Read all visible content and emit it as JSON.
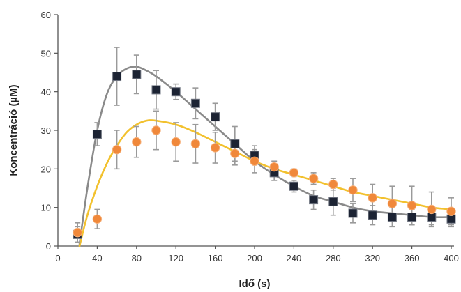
{
  "chart_data": {
    "type": "scatter",
    "title": "",
    "xlabel": "Idő (s)",
    "ylabel": "Koncentráció (µM)",
    "xlim": [
      0,
      400
    ],
    "ylim": [
      0,
      60
    ],
    "xticks": [
      0,
      40,
      80,
      120,
      160,
      200,
      240,
      280,
      320,
      360,
      400
    ],
    "yticks": [
      0,
      10,
      20,
      30,
      40,
      50,
      60
    ],
    "grid": false,
    "legend": "none",
    "series": [
      {
        "marker": "square",
        "color": "#1c2333",
        "line_color": "#8a8a8a",
        "points": [
          {
            "x": 20,
            "y": 3,
            "err": 2
          },
          {
            "x": 40,
            "y": 29,
            "err": 3
          },
          {
            "x": 60,
            "y": 44,
            "err": 7.5
          },
          {
            "x": 80,
            "y": 44.5,
            "err": 5
          },
          {
            "x": 100,
            "y": 40.5,
            "err": 5
          },
          {
            "x": 120,
            "y": 40,
            "err": 2
          },
          {
            "x": 140,
            "y": 37,
            "err": 4
          },
          {
            "x": 160,
            "y": 33.5,
            "err": 3.5
          },
          {
            "x": 180,
            "y": 26.5,
            "err": 4.5
          },
          {
            "x": 200,
            "y": 23.5,
            "err": 2.5
          },
          {
            "x": 220,
            "y": 19,
            "err": 2
          },
          {
            "x": 240,
            "y": 15.5,
            "err": 1.5
          },
          {
            "x": 260,
            "y": 12,
            "err": 2.5
          },
          {
            "x": 280,
            "y": 11.5,
            "err": 3.5
          },
          {
            "x": 300,
            "y": 8.5,
            "err": 2.5
          },
          {
            "x": 320,
            "y": 8,
            "err": 2.5
          },
          {
            "x": 340,
            "y": 7.5,
            "err": 2.5
          },
          {
            "x": 360,
            "y": 7.5,
            "err": 2
          },
          {
            "x": 380,
            "y": 7.5,
            "err": 2
          },
          {
            "x": 400,
            "y": 7,
            "err": 2
          }
        ],
        "fit_curve": [
          [
            22,
            0.5
          ],
          [
            30,
            15
          ],
          [
            40,
            30
          ],
          [
            50,
            39.5
          ],
          [
            60,
            44
          ],
          [
            70,
            46
          ],
          [
            80,
            46.5
          ],
          [
            90,
            45.5
          ],
          [
            100,
            44
          ],
          [
            120,
            40
          ],
          [
            140,
            35.5
          ],
          [
            160,
            31
          ],
          [
            180,
            26.5
          ],
          [
            200,
            22
          ],
          [
            220,
            18.5
          ],
          [
            240,
            15.5
          ],
          [
            260,
            13
          ],
          [
            280,
            11.5
          ],
          [
            300,
            10
          ],
          [
            320,
            9
          ],
          [
            340,
            8.5
          ],
          [
            360,
            8
          ],
          [
            380,
            7.5
          ],
          [
            400,
            7.5
          ]
        ]
      },
      {
        "marker": "circle",
        "color": "#f0883a",
        "line_color": "#f2c12e",
        "points": [
          {
            "x": 20,
            "y": 3.5,
            "err": 2.5
          },
          {
            "x": 40,
            "y": 7,
            "err": 2.5
          },
          {
            "x": 60,
            "y": 25,
            "err": 5
          },
          {
            "x": 80,
            "y": 27,
            "err": 4
          },
          {
            "x": 100,
            "y": 30,
            "err": 5
          },
          {
            "x": 120,
            "y": 27,
            "err": 5
          },
          {
            "x": 140,
            "y": 26.5,
            "err": 5
          },
          {
            "x": 160,
            "y": 25.5,
            "err": 4
          },
          {
            "x": 180,
            "y": 24,
            "err": 3
          },
          {
            "x": 200,
            "y": 22,
            "err": 3
          },
          {
            "x": 220,
            "y": 20.5,
            "err": 1.5
          },
          {
            "x": 240,
            "y": 19,
            "err": 1
          },
          {
            "x": 260,
            "y": 17.5,
            "err": 1.5
          },
          {
            "x": 280,
            "y": 16,
            "err": 1.5
          },
          {
            "x": 300,
            "y": 14.5,
            "err": 3
          },
          {
            "x": 320,
            "y": 12.5,
            "err": 3.5
          },
          {
            "x": 340,
            "y": 11,
            "err": 4.5
          },
          {
            "x": 360,
            "y": 10.5,
            "err": 5
          },
          {
            "x": 380,
            "y": 9.5,
            "err": 4.5
          },
          {
            "x": 400,
            "y": 9,
            "err": 3.5
          }
        ],
        "fit_curve": [
          [
            22,
            0
          ],
          [
            30,
            8
          ],
          [
            40,
            15.5
          ],
          [
            50,
            21.5
          ],
          [
            60,
            26
          ],
          [
            70,
            29.5
          ],
          [
            80,
            31.5
          ],
          [
            90,
            32.5
          ],
          [
            100,
            32.5
          ],
          [
            120,
            31.5
          ],
          [
            140,
            29.5
          ],
          [
            160,
            27
          ],
          [
            180,
            24.5
          ],
          [
            200,
            22
          ],
          [
            220,
            20
          ],
          [
            240,
            18.5
          ],
          [
            260,
            17
          ],
          [
            280,
            15.5
          ],
          [
            300,
            14
          ],
          [
            320,
            13
          ],
          [
            340,
            12
          ],
          [
            360,
            11
          ],
          [
            380,
            10
          ],
          [
            400,
            9.5
          ]
        ]
      }
    ]
  }
}
